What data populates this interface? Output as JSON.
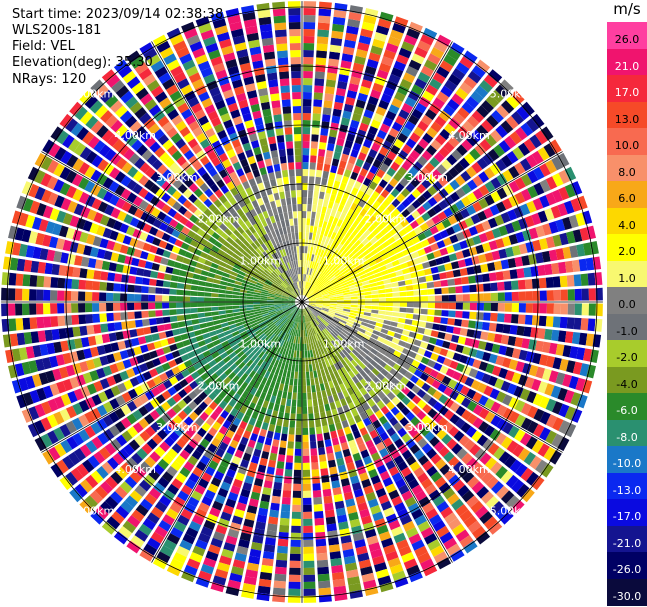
{
  "header": {
    "start_time": "Start time: 2023/09/14 02:38:38",
    "instrument": "WLS200s-181",
    "field": "Field: VEL",
    "elevation": "Elevation(deg): 35.30",
    "nrays": "NRays: 120"
  },
  "colorbar": {
    "unit": "m/s",
    "entries": [
      {
        "label": "26.0",
        "color": "#ff3fa0"
      },
      {
        "label": "21.0",
        "color": "#f0146e"
      },
      {
        "label": "17.0",
        "color": "#f5283c"
      },
      {
        "label": "13.0",
        "color": "#f64a28"
      },
      {
        "label": "10.0",
        "color": "#f86a50"
      },
      {
        "label": "8.0",
        "color": "#f8906a"
      },
      {
        "label": "6.0",
        "color": "#f8a818"
      },
      {
        "label": "4.0",
        "color": "#fdd800"
      },
      {
        "label": "2.0",
        "color": "#ffff00"
      },
      {
        "label": "1.0",
        "color": "#f8f870"
      },
      {
        "label": "0.0",
        "color": "#808080"
      },
      {
        "label": "-1.0",
        "color": "#6e7278"
      },
      {
        "label": "-2.0",
        "color": "#a8cc2c"
      },
      {
        "label": "-4.0",
        "color": "#7a9a20"
      },
      {
        "label": "-6.0",
        "color": "#2a8a2a"
      },
      {
        "label": "-8.0",
        "color": "#2a9070"
      },
      {
        "label": "-10.0",
        "color": "#1a78c8"
      },
      {
        "label": "-13.0",
        "color": "#0a28f0"
      },
      {
        "label": "-17.0",
        "color": "#0a0ae0"
      },
      {
        "label": "-21.0",
        "color": "#141490"
      },
      {
        "label": "-26.0",
        "color": "#000064"
      },
      {
        "label": "-30.0",
        "color": "#0a0a3c"
      }
    ]
  },
  "chart_data": {
    "type": "heatmap",
    "projection": "polar PPI scan",
    "field": "VEL",
    "n_rays": 120,
    "rings_km": [
      1.0,
      2.0,
      3.0,
      4.0,
      5.0
    ],
    "ring_labels": [
      "1.00km",
      "2.00km",
      "3.00km",
      "4.00km",
      "5.00km"
    ],
    "azimuth_lines_deg": [
      0,
      30,
      60,
      90,
      120,
      150,
      180,
      210,
      240,
      270,
      300,
      330
    ],
    "max_range_km": 5.1,
    "clean_range_km": 2.3,
    "velocity_pattern": {
      "toward_ne_quadrant_ms": 3.0,
      "toward_sw_quadrant_ms": -6.0,
      "noise_beyond_range": true
    }
  }
}
